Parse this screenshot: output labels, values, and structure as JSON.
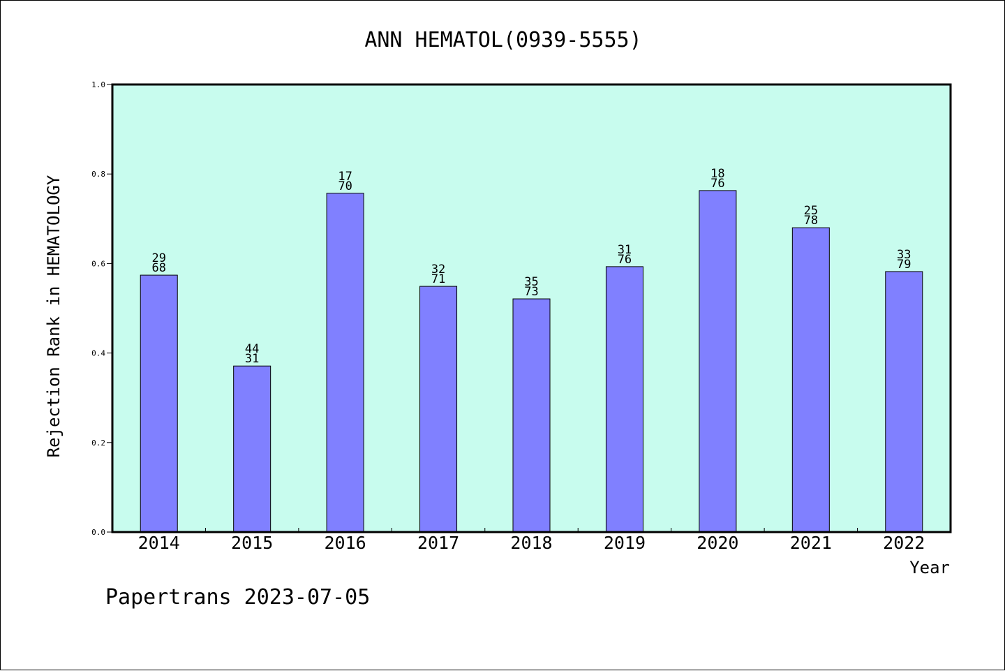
{
  "chart_data": {
    "type": "bar",
    "title": "ANN HEMATOL(0939-5555)",
    "xlabel": "Year",
    "ylabel": "Rejection Rank in HEMATOLOGY",
    "footer": "Papertrans 2023-07-05",
    "categories": [
      "2014",
      "2015",
      "2016",
      "2017",
      "2018",
      "2019",
      "2020",
      "2021",
      "2022"
    ],
    "values": [
      0.574,
      0.371,
      0.757,
      0.549,
      0.521,
      0.593,
      0.763,
      0.68,
      0.582
    ],
    "label_top": [
      "29",
      "44",
      "17",
      "32",
      "35",
      "31",
      "18",
      "25",
      "33"
    ],
    "label_bottom": [
      "68",
      "31",
      "70",
      "71",
      "73",
      "76",
      "76",
      "78",
      "79"
    ],
    "ylim": [
      0,
      1.0
    ],
    "yticks": [
      "0.0",
      "0.2",
      "0.4",
      "0.6",
      "0.8",
      "1.0"
    ],
    "grid": false,
    "colors": {
      "plot_background": "#c8fcee",
      "bar_fill": "#8080ff",
      "bar_stroke": "#000000",
      "text": "#000000"
    }
  }
}
